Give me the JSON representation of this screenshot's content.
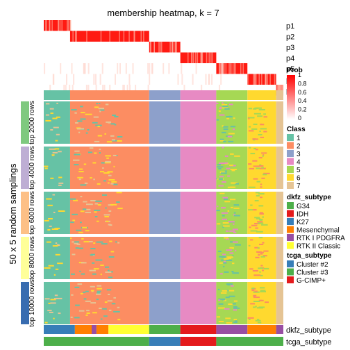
{
  "chart_data": {
    "type": "heatmap",
    "title": "membership heatmap, k = 7",
    "ylabel": "50 x 5 random samplings",
    "prob_rows": [
      "p1",
      "p2",
      "p3",
      "p4",
      "p5",
      "p6",
      "p7"
    ],
    "prob_col_spans": [
      {
        "row": "p1",
        "from": 0.0,
        "to": 0.11
      },
      {
        "row": "p2",
        "from": 0.11,
        "to": 0.44
      },
      {
        "row": "p3",
        "from": 0.44,
        "to": 0.57
      },
      {
        "row": "p4",
        "from": 0.57,
        "to": 0.72
      },
      {
        "row": "p5",
        "from": 0.72,
        "to": 0.85
      },
      {
        "row": "p6",
        "from": 0.85,
        "to": 0.97
      },
      {
        "row": "p7",
        "from": 0.97,
        "to": 1.0
      }
    ],
    "class_fractions": [
      0.11,
      0.33,
      0.13,
      0.15,
      0.13,
      0.12,
      0.03
    ],
    "groups": [
      "top 2000 rows",
      "top 4000 rows",
      "top 6000 rows",
      "top 8000 rows",
      "top 10000 rows"
    ],
    "annotation_tracks": [
      "dkfz_subtype",
      "tcga_subtype"
    ],
    "legend": {
      "prob": {
        "title": "Prob",
        "ticks": [
          "1",
          "0.8",
          "0.6",
          "0.4",
          "0.2",
          "0"
        ]
      },
      "class": {
        "title": "Class",
        "items": [
          {
            "label": "1",
            "color": "#66C2A5"
          },
          {
            "label": "2",
            "color": "#FC8D62"
          },
          {
            "label": "3",
            "color": "#8DA0CB"
          },
          {
            "label": "4",
            "color": "#E78AC3"
          },
          {
            "label": "5",
            "color": "#A6D854"
          },
          {
            "label": "6",
            "color": "#FFD92F"
          },
          {
            "label": "7",
            "color": "#E5C494"
          }
        ]
      },
      "dkfz_subtype": {
        "title": "dkfz_subtype",
        "items": [
          {
            "label": "G34",
            "color": "#4DAF4A"
          },
          {
            "label": "IDH",
            "color": "#E41A1C"
          },
          {
            "label": "K27",
            "color": "#377EB8"
          },
          {
            "label": "Mesenchymal",
            "color": "#FF7F00"
          },
          {
            "label": "RTK I PDGFRA",
            "color": "#984EA3"
          },
          {
            "label": "RTK II Classic",
            "color": "#FFFF33"
          }
        ]
      },
      "tcga_subtype": {
        "title": "tcga_subtype",
        "items": [
          {
            "label": "Cluster #2",
            "color": "#377EB8"
          },
          {
            "label": "Cluster #3",
            "color": "#4DAF4A"
          },
          {
            "label": "G-CIMP+",
            "color": "#E41A1C"
          }
        ]
      }
    },
    "group_colors": [
      "#7FC97F",
      "#BEAED4",
      "#FDC086",
      "#FFFF99",
      "#386CB0"
    ],
    "prob_colors": {
      "low": "#FFFFFF",
      "high": "#FF0000"
    }
  }
}
